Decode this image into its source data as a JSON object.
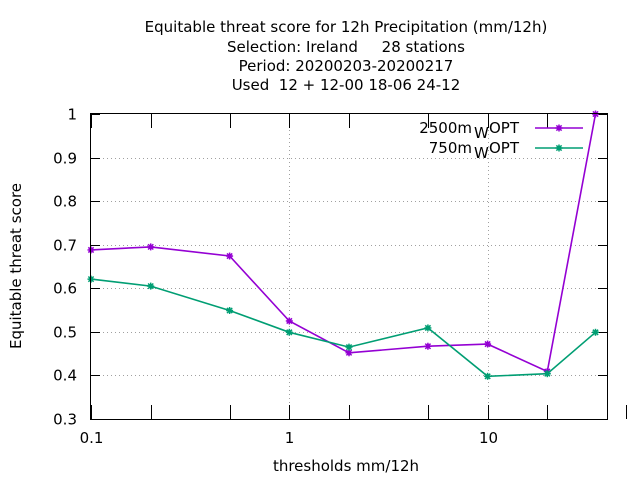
{
  "chart_data": {
    "type": "line",
    "title": [
      "Equitable threat score  for 12h Precipitation (mm/12h)",
      "Selection: Ireland     28 stations",
      "Period: 20200203-20200217",
      "Used  12 + 12-00 18-06 24-12"
    ],
    "xlabel": "thresholds mm/12h",
    "ylabel": "Equitable threat score",
    "xscale": "log",
    "xlim": [
      0.1,
      40
    ],
    "ylim": [
      0.3,
      1.0
    ],
    "xticks": [
      0.1,
      1,
      10
    ],
    "xtick_labels": [
      "0.1",
      "1",
      "10"
    ],
    "xticks_minor": [
      0.2,
      0.5,
      2,
      5,
      20,
      50
    ],
    "yticks": [
      0.3,
      0.4,
      0.5,
      0.6,
      0.7,
      0.8,
      0.9,
      1.0
    ],
    "ytick_labels": [
      "0.3",
      "0.4",
      "0.5",
      "0.6",
      "0.7",
      "0.8",
      "0.9",
      "1"
    ],
    "grid": true,
    "legend_position": "top-right",
    "x": [
      0.1,
      0.2,
      0.5,
      1,
      2,
      5,
      10,
      20,
      35
    ],
    "series": [
      {
        "name": "2500m",
        "name_sub": "W",
        "name_suffix": "OPT",
        "color": "#9400d3",
        "values": [
          0.688,
          0.695,
          0.674,
          0.525,
          0.452,
          0.467,
          0.472,
          0.409,
          1.0
        ]
      },
      {
        "name": "750m",
        "name_sub": "W",
        "name_suffix": "OPT",
        "color": "#009e73",
        "values": [
          0.621,
          0.605,
          0.549,
          0.499,
          0.465,
          0.509,
          0.398,
          0.404,
          0.499
        ]
      }
    ]
  }
}
